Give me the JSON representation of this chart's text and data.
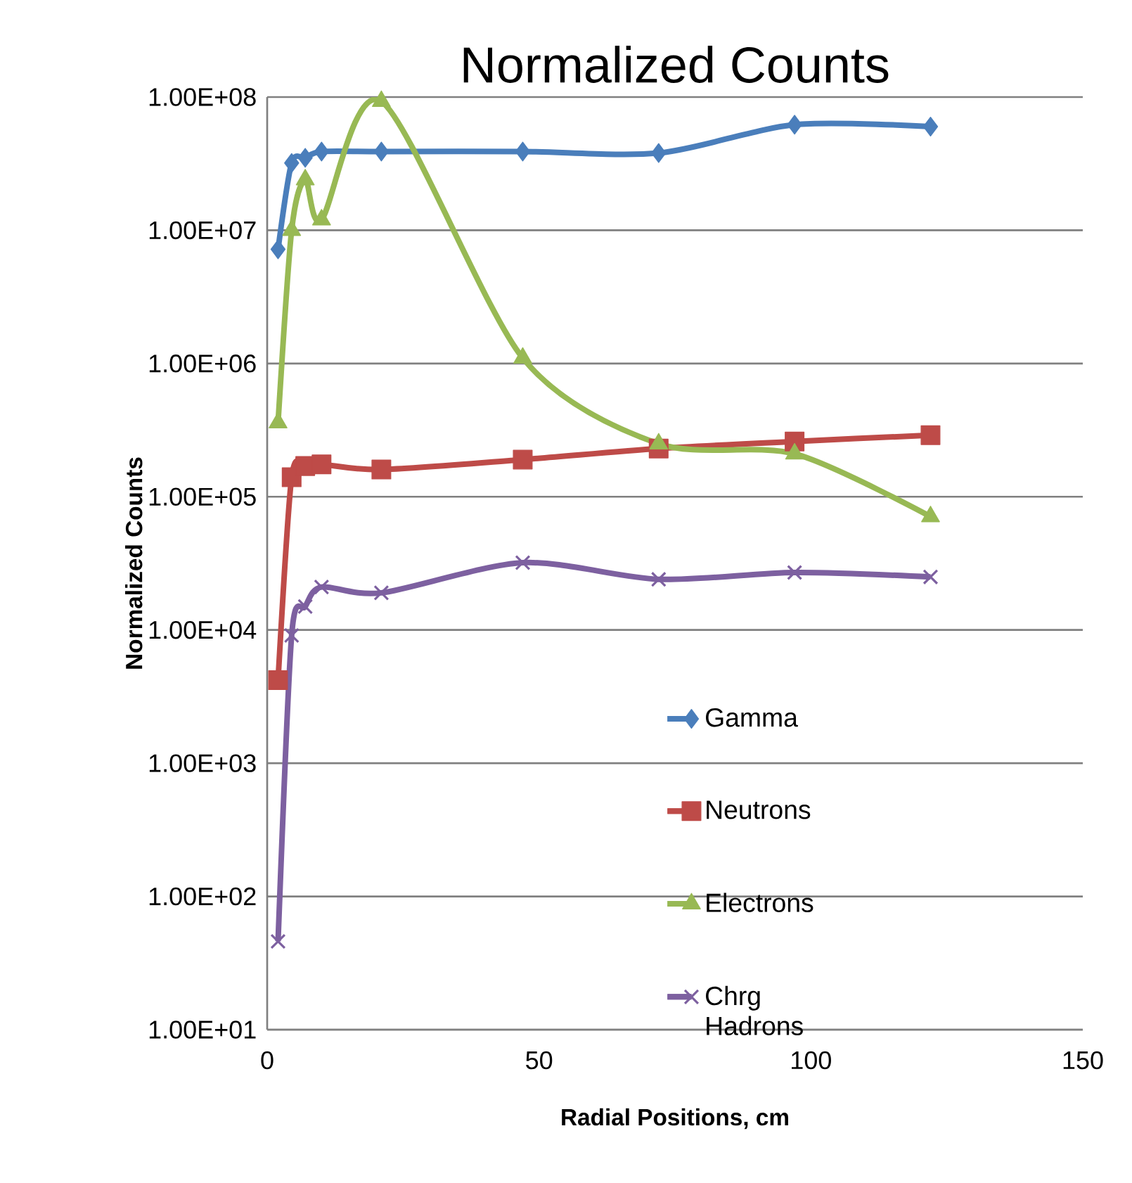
{
  "chart_data": {
    "type": "line",
    "title": "Normalized Counts",
    "xlabel": "Radial Positions, cm",
    "ylabel": "Normalized Counts",
    "x": [
      2,
      4.5,
      7,
      10,
      21,
      47,
      72,
      97,
      122
    ],
    "series": [
      {
        "name": "Gamma",
        "color": "#4a7ebb",
        "marker": "diamond",
        "values": [
          7200000,
          32000000,
          35000000,
          39000000,
          39000000,
          39000000,
          38000000,
          62000000,
          60000000
        ]
      },
      {
        "name": "Neutrons",
        "color": "#be4b48",
        "marker": "square",
        "values": [
          4200,
          140000,
          170000,
          175000,
          160000,
          190000,
          230000,
          260000,
          290000
        ]
      },
      {
        "name": "Electrons",
        "color": "#98b954",
        "marker": "triangle",
        "values": [
          360000,
          10000000,
          24000000,
          12000000,
          93000000,
          1100000,
          250000,
          210000,
          71000
        ]
      },
      {
        "name": "Chrg Hadrons",
        "color": "#7d60a0",
        "marker": "cross",
        "values": [
          46,
          9100,
          15000,
          21000,
          19000,
          32000,
          24000,
          27000,
          25000
        ]
      }
    ],
    "xlim": [
      0,
      150
    ],
    "xticks": [
      0,
      50,
      100,
      150
    ],
    "ylim": [
      10,
      100000000
    ],
    "log": "y",
    "yticks": [
      {
        "value": 10,
        "label": "1.00E+01"
      },
      {
        "value": 100,
        "label": "1.00E+02"
      },
      {
        "value": 1000,
        "label": "1.00E+03"
      },
      {
        "value": 10000,
        "label": "1.00E+04"
      },
      {
        "value": 100000,
        "label": "1.00E+05"
      },
      {
        "value": 1000000,
        "label": "1.00E+06"
      },
      {
        "value": 10000000,
        "label": "1.00E+07"
      },
      {
        "value": 100000000,
        "label": "1.00E+08"
      }
    ],
    "grid": "y",
    "legend": "right",
    "line_style": "solid"
  }
}
